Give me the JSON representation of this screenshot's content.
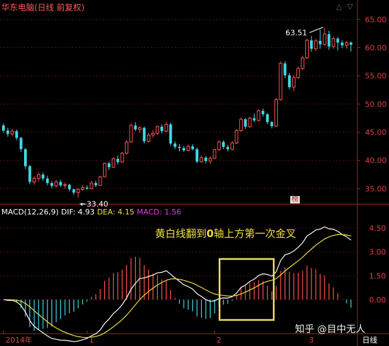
{
  "header": {
    "title": "华东电脑(日线 前复权)"
  },
  "indicator": {
    "name": "MACD(12,26,9)",
    "dif_label": "DIF:",
    "dif_value": "4.93",
    "dea_label": "DEA:",
    "dea_value": "4.15",
    "macd_label": "MACD:",
    "macd_value": "1.56"
  },
  "annotation": {
    "text_pre": "黄白线翻到",
    "text_bold": "0",
    "text_post": "轴上方第一次金叉"
  },
  "tag": "榜",
  "watermark": "知乎 @目中无人",
  "period": "日线",
  "controls": {
    "up": "△",
    "down": "▽"
  },
  "colors": {
    "up": "#ff5252",
    "down": "#3fd9e6",
    "axis": "#c01818",
    "grid": "#5a1010",
    "dif": "#ffffff",
    "dea": "#f0e040",
    "box": "#f0e060"
  },
  "chart_data": [
    {
      "type": "candlestick",
      "ylim": [
        32.5,
        66.5
      ],
      "yticks": [
        "65.00",
        "60.00",
        "55.00",
        "50.00",
        "45.00",
        "40.00",
        "35.00"
      ],
      "ytick_values": [
        65,
        60,
        55,
        50,
        45,
        40,
        35
      ],
      "annotations": [
        {
          "label": "63.51",
          "value": 63.51,
          "index": 73
        },
        {
          "label": "33.40",
          "value": 33.4,
          "index": 17
        }
      ],
      "ohlc": [
        [
          46.2,
          46.6,
          44.9,
          45.3
        ],
        [
          45.3,
          45.8,
          44.2,
          44.7
        ],
        [
          44.7,
          45.6,
          44.3,
          45.2
        ],
        [
          45.2,
          45.5,
          43.6,
          44.0
        ],
        [
          44.0,
          44.2,
          41.5,
          42.0
        ],
        [
          42.0,
          42.2,
          38.5,
          39.0
        ],
        [
          39.0,
          39.2,
          35.8,
          36.2
        ],
        [
          36.2,
          37.2,
          35.7,
          36.8
        ],
        [
          36.8,
          37.8,
          36.2,
          37.5
        ],
        [
          37.5,
          37.9,
          36.4,
          36.8
        ],
        [
          36.8,
          37.3,
          35.6,
          36.0
        ],
        [
          36.0,
          36.3,
          35.1,
          35.5
        ],
        [
          35.5,
          36.6,
          35.2,
          36.2
        ],
        [
          36.2,
          36.6,
          35.3,
          35.6
        ],
        [
          35.6,
          36.1,
          35.0,
          35.7
        ],
        [
          35.7,
          35.9,
          34.5,
          34.9
        ],
        [
          34.9,
          35.0,
          33.9,
          34.3
        ],
        [
          34.3,
          35.1,
          33.4,
          34.9
        ],
        [
          34.9,
          35.6,
          34.6,
          35.2
        ],
        [
          35.2,
          35.6,
          34.8,
          35.0
        ],
        [
          35.0,
          36.4,
          34.9,
          36.0
        ],
        [
          36.0,
          36.4,
          35.3,
          35.6
        ],
        [
          35.6,
          37.3,
          35.5,
          37.1
        ],
        [
          37.1,
          39.6,
          37.0,
          39.5
        ],
        [
          39.5,
          39.8,
          38.3,
          38.8
        ],
        [
          38.8,
          40.6,
          38.7,
          40.3
        ],
        [
          40.3,
          40.9,
          39.3,
          39.7
        ],
        [
          39.7,
          41.5,
          39.6,
          41.3
        ],
        [
          41.3,
          43.6,
          41.1,
          43.3
        ],
        [
          43.3,
          46.6,
          43.1,
          46.2
        ],
        [
          46.2,
          46.8,
          45.2,
          45.5
        ],
        [
          45.5,
          46.1,
          44.9,
          45.8
        ],
        [
          45.8,
          46.0,
          43.0,
          43.4
        ],
        [
          43.4,
          44.8,
          43.2,
          44.5
        ],
        [
          44.5,
          45.4,
          44.0,
          44.8
        ],
        [
          44.8,
          46.2,
          44.6,
          46.0
        ],
        [
          46.0,
          46.4,
          44.8,
          45.2
        ],
        [
          45.2,
          46.8,
          45.0,
          46.4
        ],
        [
          46.4,
          46.7,
          42.6,
          43.0
        ],
        [
          43.0,
          43.4,
          42.0,
          42.4
        ],
        [
          42.4,
          42.9,
          41.6,
          42.2
        ],
        [
          42.2,
          42.6,
          41.5,
          41.8
        ],
        [
          41.8,
          42.8,
          41.6,
          42.5
        ],
        [
          42.5,
          42.9,
          41.8,
          42.0
        ],
        [
          42.0,
          42.3,
          39.5,
          39.8
        ],
        [
          39.8,
          40.9,
          39.6,
          40.5
        ],
        [
          40.5,
          40.8,
          39.5,
          39.9
        ],
        [
          39.9,
          40.7,
          39.4,
          40.4
        ],
        [
          40.4,
          42.1,
          40.2,
          41.9
        ],
        [
          41.9,
          43.6,
          41.7,
          43.3
        ],
        [
          43.3,
          43.6,
          42.0,
          42.4
        ],
        [
          42.4,
          42.8,
          41.6,
          42.0
        ],
        [
          42.0,
          43.4,
          41.8,
          43.1
        ],
        [
          43.1,
          45.6,
          42.9,
          45.3
        ],
        [
          45.3,
          47.6,
          45.1,
          47.3
        ],
        [
          47.3,
          47.5,
          45.6,
          46.0
        ],
        [
          46.0,
          47.8,
          45.8,
          47.5
        ],
        [
          47.5,
          48.3,
          46.8,
          47.1
        ],
        [
          47.1,
          49.1,
          46.9,
          48.8
        ],
        [
          48.8,
          49.2,
          47.8,
          48.2
        ],
        [
          48.2,
          48.4,
          46.4,
          46.8
        ],
        [
          46.8,
          47.0,
          45.7,
          46.1
        ],
        [
          46.1,
          51.1,
          45.9,
          50.8
        ],
        [
          50.8,
          57.6,
          50.6,
          57.2
        ],
        [
          57.2,
          57.6,
          54.6,
          55.1
        ],
        [
          55.1,
          55.5,
          52.6,
          53.0
        ],
        [
          53.0,
          55.1,
          52.3,
          54.7
        ],
        [
          54.7,
          56.6,
          54.5,
          56.3
        ],
        [
          56.3,
          58.6,
          56.0,
          58.2
        ],
        [
          58.2,
          61.6,
          58.0,
          61.3
        ],
        [
          61.3,
          62.1,
          59.3,
          59.8
        ],
        [
          59.8,
          61.6,
          59.4,
          61.2
        ],
        [
          61.2,
          63.2,
          59.8,
          60.6
        ],
        [
          60.6,
          63.5,
          60.3,
          62.4
        ],
        [
          62.4,
          63.0,
          59.6,
          60.2
        ],
        [
          60.2,
          62.0,
          59.8,
          61.6
        ],
        [
          61.6,
          61.9,
          59.5,
          60.9
        ],
        [
          60.9,
          61.3,
          59.9,
          60.4
        ],
        [
          60.4,
          61.2,
          59.8,
          60.9
        ],
        [
          60.9,
          61.1,
          59.3,
          60.5
        ]
      ]
    },
    {
      "type": "macd",
      "ylim": [
        -2.1,
        5.4
      ],
      "yticks": [
        "4.50",
        "3.00",
        "1.50",
        "0.00"
      ],
      "ytick_values": [
        4.5,
        3.0,
        1.5,
        0.0
      ],
      "xticks": [
        {
          "label": "2014年",
          "index": 0
        },
        {
          "label": "1",
          "index": 19
        },
        {
          "label": "2",
          "index": 48
        },
        {
          "label": "3",
          "index": 69
        }
      ]
    }
  ]
}
